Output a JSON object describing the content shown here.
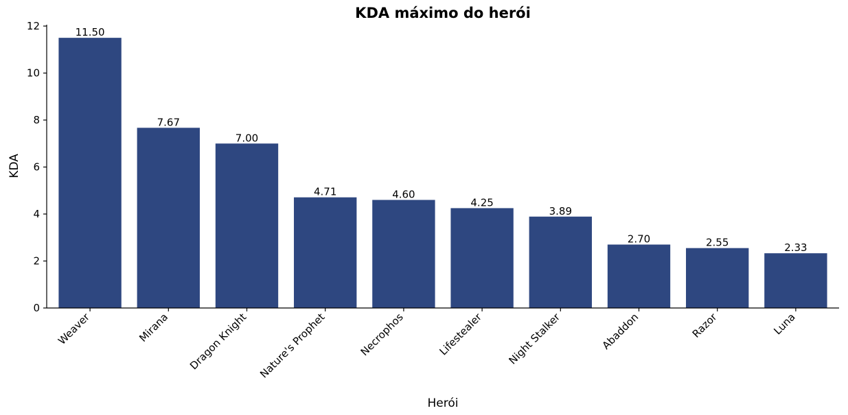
{
  "chart_data": {
    "type": "bar",
    "title": "KDA máximo do herói",
    "xlabel": "Herói",
    "ylabel": "KDA",
    "categories": [
      "Weaver",
      "Mirana",
      "Dragon Knight",
      "Nature's Prophet",
      "Necrophos",
      "Lifestealer",
      "Night Stalker",
      "Abaddon",
      "Razor",
      "Luna"
    ],
    "values": [
      11.5,
      7.67,
      7.0,
      4.71,
      4.6,
      4.25,
      3.89,
      2.7,
      2.55,
      2.33
    ],
    "value_labels": [
      "11.50",
      "7.67",
      "7.00",
      "4.71",
      "4.60",
      "4.25",
      "3.89",
      "2.70",
      "2.55",
      "2.33"
    ],
    "ylim": [
      0,
      12
    ],
    "yticks": [
      0,
      2,
      4,
      6,
      8,
      10,
      12
    ],
    "grid": false,
    "bar_color": "#2e4780"
  }
}
